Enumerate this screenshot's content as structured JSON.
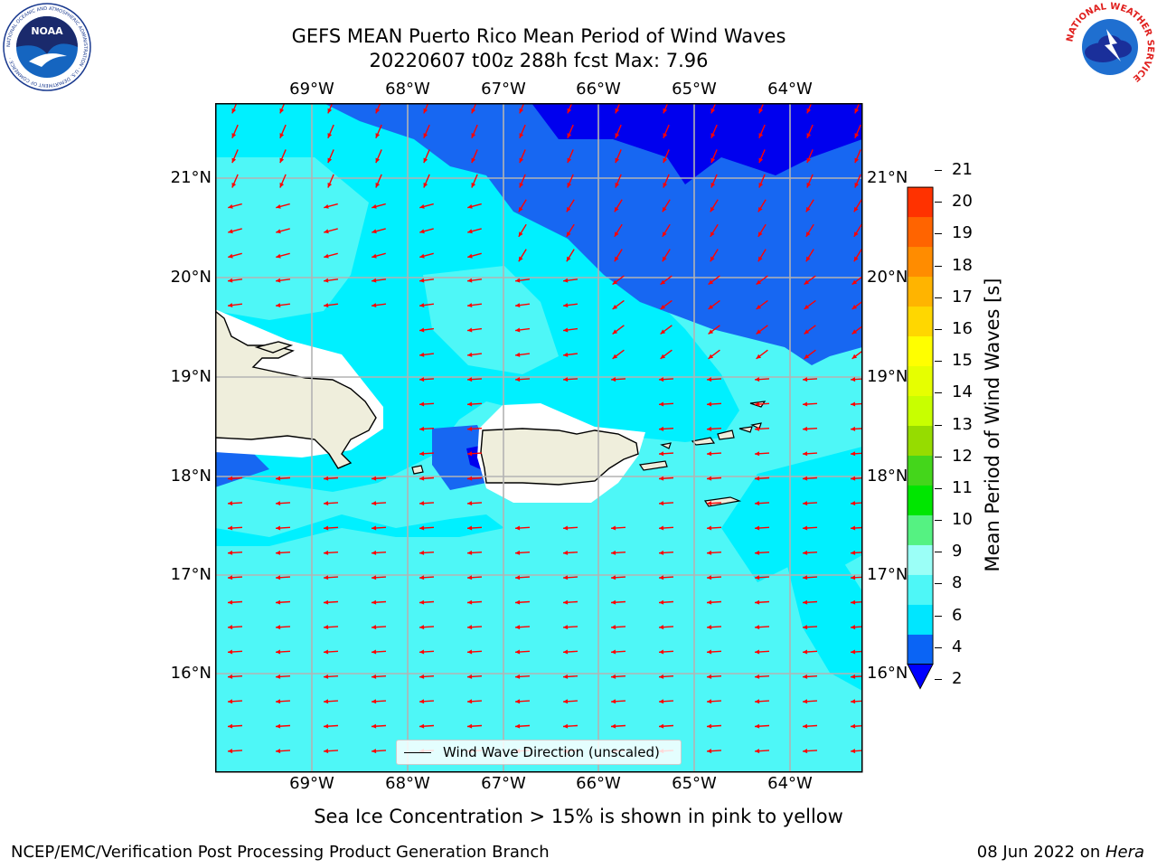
{
  "header": {
    "title_line1": "GEFS MEAN Puerto Rico Mean Period of Wind Waves",
    "title_line2": "20220607 t00z 288h fcst   Max: 7.96"
  },
  "logos": {
    "noaa_text": "NOAA",
    "noaa_ring": "NATIONAL OCEANIC AND ATMOSPHERIC ADMINISTRATION · U.S. DEPARTMENT OF COMMERCE ·",
    "nws_ring": "NATIONAL WEATHER SERVICE"
  },
  "map": {
    "lon_labels": [
      "69°W",
      "68°W",
      "67°W",
      "66°W",
      "65°W",
      "64°W"
    ],
    "lat_labels": [
      "21°N",
      "20°N",
      "19°N",
      "18°N",
      "17°N",
      "16°N"
    ],
    "lon_values": [
      -69,
      -68,
      -67,
      -66,
      -65,
      -64
    ],
    "lat_values": [
      21,
      20,
      19,
      18,
      17,
      16
    ],
    "lon_range": [
      -70,
      -63.25
    ],
    "lat_range": [
      15.03,
      21.75
    ],
    "gridlines": true,
    "land_color": "#efeedc",
    "coast_color": "#000000",
    "arrow_color": "#ff0000",
    "arrow_direction": "toward west / west-southwest"
  },
  "legend": {
    "label": "Wind Wave Direction (unscaled)"
  },
  "colorbar": {
    "label": "Mean Period of Wind Waves [s]",
    "tick_labels": [
      "2",
      "4",
      "6",
      "8",
      "9",
      "10",
      "11",
      "12",
      "13",
      "14",
      "15",
      "16",
      "17",
      "18",
      "19",
      "20",
      "21"
    ],
    "levels": [
      2,
      4,
      6,
      8,
      9,
      10,
      11,
      12,
      13,
      14,
      15,
      16,
      17,
      18,
      19,
      20,
      21
    ],
    "colors": [
      "#0a64f5",
      "#00e6ff",
      "#4ef7f7",
      "#9bfff7",
      "#55f282",
      "#00e600",
      "#44d61b",
      "#96dc00",
      "#c8ff00",
      "#e6ff00",
      "#ffff00",
      "#ffd700",
      "#ffb400",
      "#ff8c00",
      "#ff6400",
      "#ff3200"
    ],
    "under_color": "#0000ff",
    "extend": "min"
  },
  "note": "Sea Ice Concentration > 15% is shown in pink to yellow",
  "footer": {
    "left": "NCEP/EMC/Verification Post Processing Product Generation Branch",
    "right_prefix": "08 Jun 2022 on ",
    "right_machine": "Hera"
  }
}
